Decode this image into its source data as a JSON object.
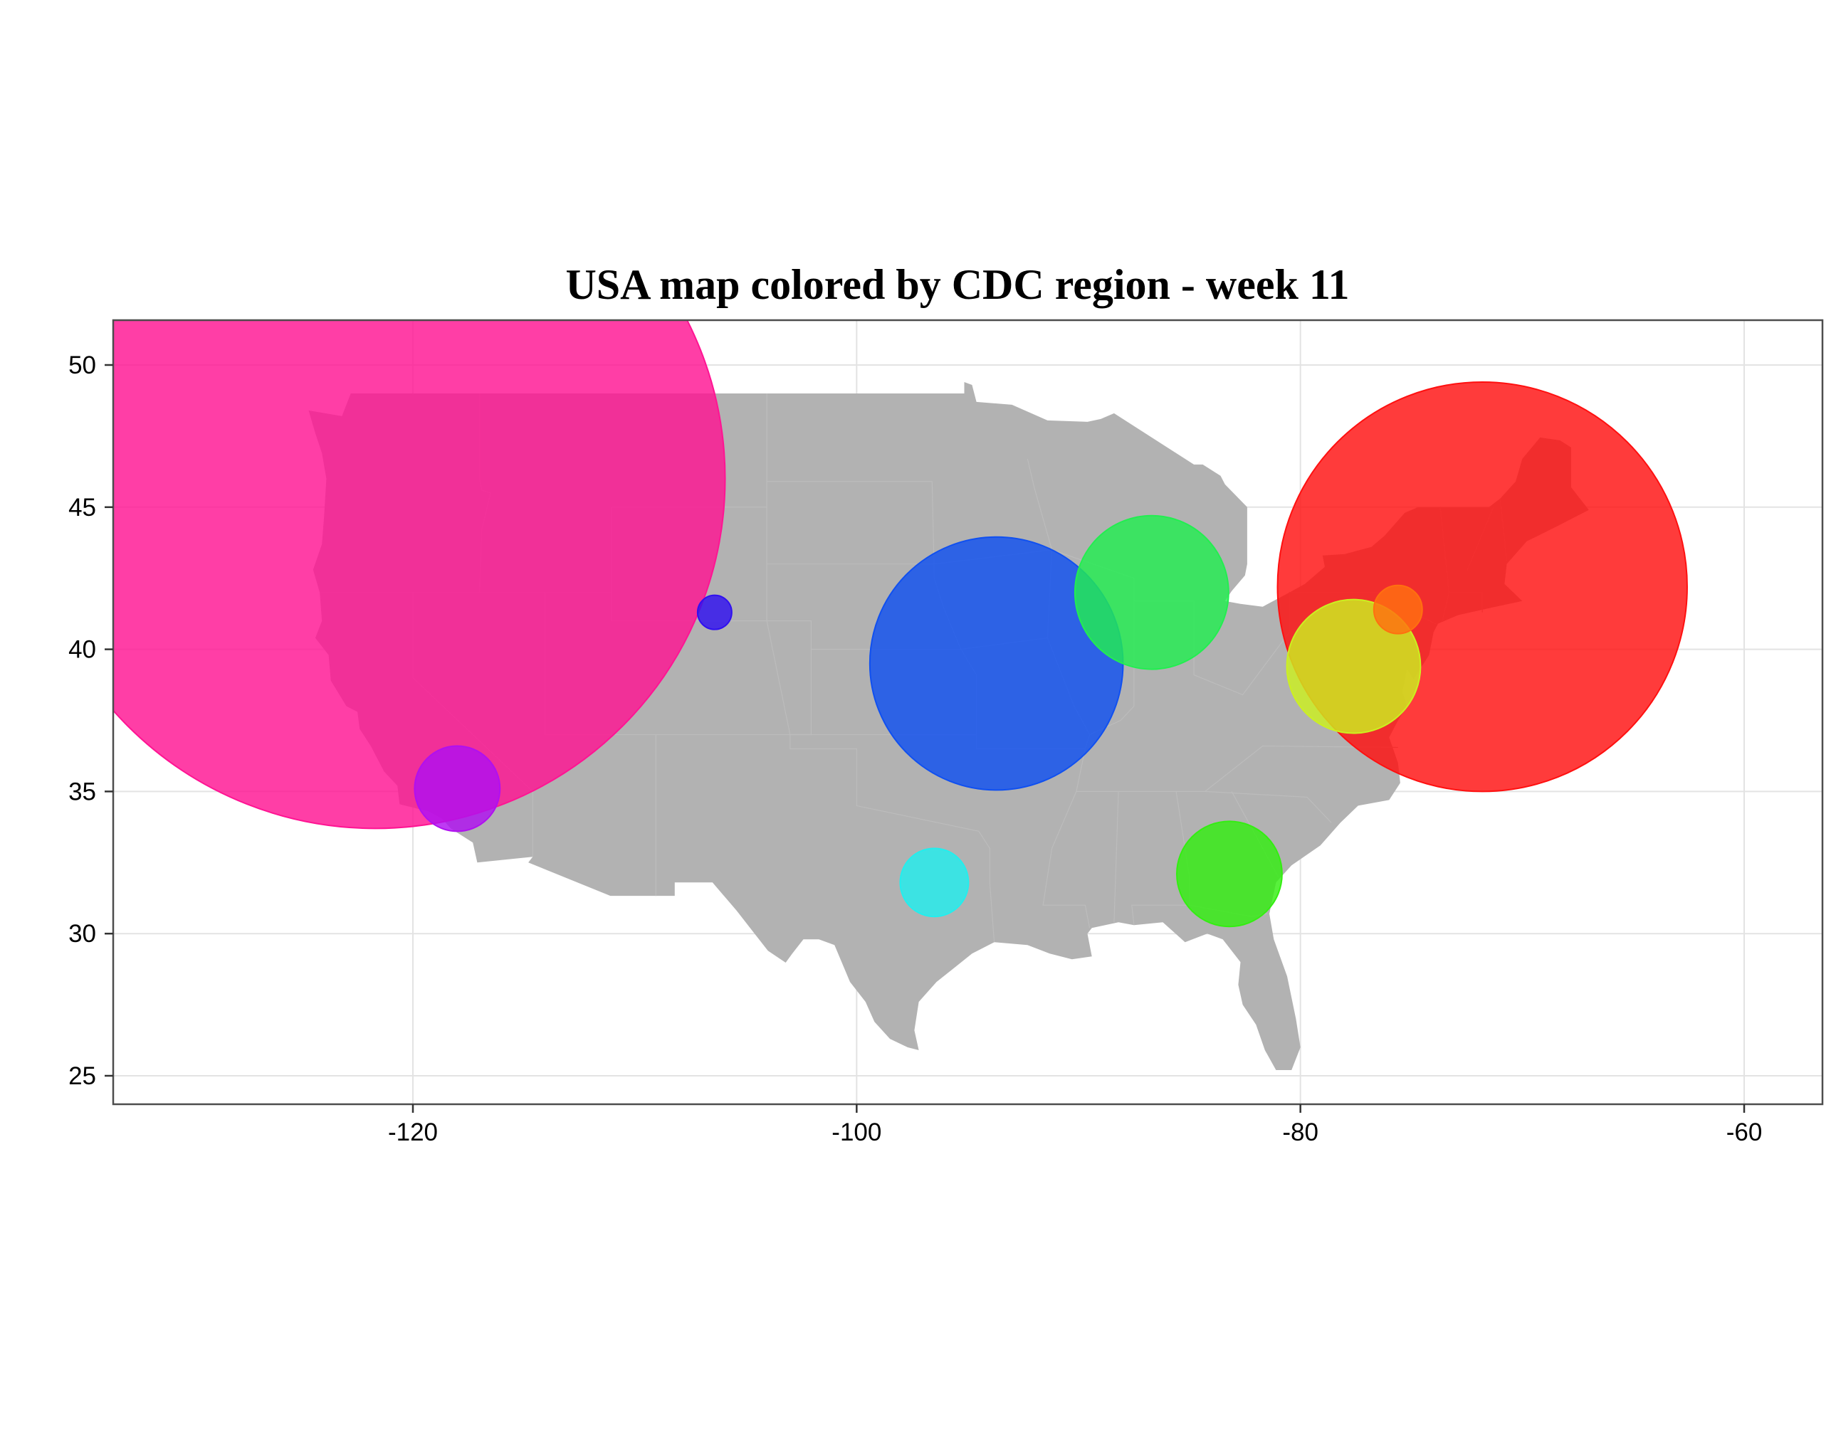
{
  "chart_data": {
    "type": "bubble-map",
    "title": "USA map colored by CDC region - week 11",
    "xlabel": "",
    "ylabel": "",
    "xlim": [
      -133.5,
      -56.5
    ],
    "ylim": [
      24,
      51.5
    ],
    "x_ticks": [
      -120,
      -100,
      -80,
      -60
    ],
    "x_tick_labels": [
      "-120",
      "-100",
      "-80",
      "-60"
    ],
    "y_ticks": [
      25,
      30,
      35,
      40,
      45,
      50
    ],
    "y_tick_labels": [
      "25",
      "30",
      "35",
      "40",
      "45",
      "50"
    ],
    "grid": true,
    "legend": "none",
    "map_fill": "#b2b2b2",
    "bubbles": [
      {
        "lon": -121.7,
        "lat": 46.0,
        "radius_deg": 12.3,
        "color": "#ff1493"
      },
      {
        "lon": -71.8,
        "lat": 42.2,
        "radius_deg": 7.2,
        "color": "#ff1010"
      },
      {
        "lon": -93.7,
        "lat": 39.5,
        "radius_deg": 4.45,
        "color": "#1050f0"
      },
      {
        "lon": -86.7,
        "lat": 42.0,
        "radius_deg": 2.7,
        "color": "#22ee50"
      },
      {
        "lon": -77.6,
        "lat": 39.4,
        "radius_deg": 2.35,
        "color": "#ccf020"
      },
      {
        "lon": -83.2,
        "lat": 32.1,
        "radius_deg": 1.85,
        "color": "#33ee11"
      },
      {
        "lon": -118.0,
        "lat": 35.1,
        "radius_deg": 1.5,
        "color": "#b010f0"
      },
      {
        "lon": -96.5,
        "lat": 31.8,
        "radius_deg": 1.2,
        "color": "#22eeee"
      },
      {
        "lon": -75.6,
        "lat": 41.4,
        "radius_deg": 0.85,
        "color": "#ff7010"
      },
      {
        "lon": -106.4,
        "lat": 41.3,
        "radius_deg": 0.6,
        "color": "#3010f0"
      }
    ]
  }
}
